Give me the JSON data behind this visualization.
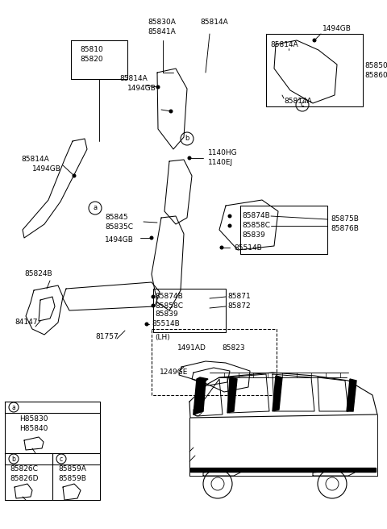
{
  "bg_color": "#ffffff",
  "figsize": [
    4.8,
    6.56
  ],
  "dpi": 100,
  "labels": {
    "top_l1": "85830A",
    "top_l2": "85841A",
    "top_m": "85814A",
    "top_r_1494": "1494GB",
    "box_r_1": "85850",
    "box_r_2": "85860",
    "box_r_814": "85814A",
    "b_814a": "85814A",
    "b_1494": "1494GB",
    "hg": "1140HG",
    "ej": "1140EJ",
    "left_810": "85810",
    "left_820": "85820",
    "left_814a": "85814A",
    "left_1494": "1494GB",
    "mid_845": "85845",
    "mid_835c": "85835C",
    "mid_1494": "1494GB",
    "lo_824b": "85824B",
    "lo_84147": "84147",
    "lo_81757": "81757",
    "lo_874b": "85874B",
    "lo_858c": "85858C",
    "lo_839": "85839",
    "lo_514b": "85514B",
    "lo_871": "85871",
    "lo_872": "85872",
    "r_874b": "85874B",
    "r_858c": "85858C",
    "r_839": "85839",
    "r_514b": "85514B",
    "r_875b": "85875B",
    "r_876b": "85876B",
    "lh": "(LH)",
    "lh_1491": "1491AD",
    "lh_823": "85823",
    "lh_1249": "1249GE",
    "ba1": "H85830",
    "ba2": "H85840",
    "bb1": "85826C",
    "bb2": "85826D",
    "bc1": "85859A",
    "bc2": "85859B"
  }
}
